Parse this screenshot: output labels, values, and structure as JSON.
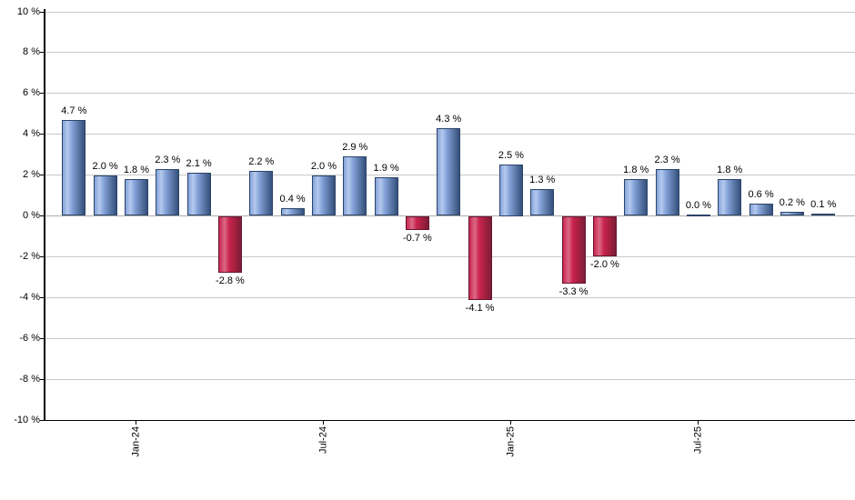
{
  "chart_data": {
    "type": "bar",
    "title": "",
    "xlabel": "",
    "ylabel": "",
    "ylim": [
      -10,
      10
    ],
    "grid": true,
    "legend": null,
    "y_tick_values": [
      10,
      8,
      6,
      4,
      2,
      0,
      -2,
      -4,
      -6,
      -8,
      -10
    ],
    "y_tick_labels": [
      "10 %",
      "8 %",
      "6 %",
      "4 %",
      "2 %",
      "0 %",
      "-2 %",
      "-4 %",
      "-6 %",
      "-8 %",
      "-10 %"
    ],
    "x_tick_labels": [
      "Jan-24",
      "Jul-24",
      "Jan-25",
      "Jul-25"
    ],
    "x_tick_bar_indices": [
      2,
      8,
      14,
      20
    ],
    "values": [
      4.7,
      2.0,
      1.8,
      2.3,
      2.1,
      -2.8,
      2.2,
      0.4,
      2.0,
      2.9,
      1.9,
      -0.7,
      4.3,
      -4.1,
      2.5,
      1.3,
      -3.3,
      -2.0,
      1.8,
      2.3,
      0.0,
      1.8,
      0.6,
      0.2,
      0.1
    ],
    "value_labels": [
      "4.7 %",
      "2.0 %",
      "1.8 %",
      "2.3 %",
      "2.1 %",
      "-2.8 %",
      "2.2 %",
      "0.4 %",
      "2.0 %",
      "2.9 %",
      "1.9 %",
      "-0.7 %",
      "4.3 %",
      "-4.1 %",
      "2.5 %",
      "1.3 %",
      "-3.3 %",
      "-2.0 %",
      "1.8 %",
      "2.3 %",
      "0.0 %",
      "1.8 %",
      "0.6 %",
      "0.2 %",
      "0.1 %"
    ],
    "colors": {
      "positive_bar_light": "#b5c9ed",
      "positive_bar_mid": "#84a3da",
      "positive_bar_shade": "#5f7cab",
      "positive_bar_dark": "#35507c",
      "positive_bar_border": "#2b4468",
      "negative_bar_light": "#da6a85",
      "negative_bar_mid": "#cb2450",
      "negative_bar_shade": "#a6203f",
      "negative_bar_dark": "#7c1d38",
      "negative_bar_border": "#671430",
      "gridline": "#c9c9c9",
      "zero_line": "#adadad",
      "axis": "#000000",
      "label_text": "#000000",
      "background": "#ffffff"
    }
  }
}
